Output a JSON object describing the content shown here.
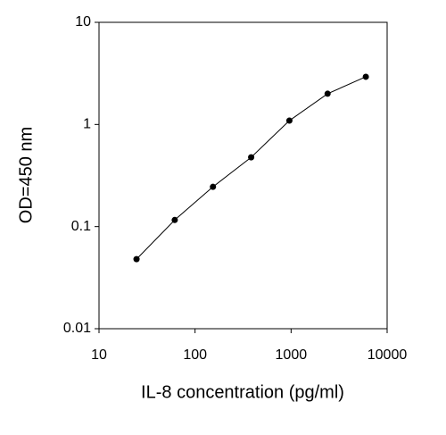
{
  "chart_data": {
    "type": "line",
    "x_label": "IL-8 concentration (pg/ml)",
    "y_label": "OD=450 nm",
    "x": [
      24.58,
      61.44,
      153.6,
      384,
      960,
      2400,
      6000
    ],
    "series": [
      {
        "color": "#000000",
        "values": [
          0.048,
          0.116,
          0.245,
          0.477,
          1.09,
          2.0,
          2.93
        ]
      }
    ],
    "xlim": [
      10,
      10000
    ],
    "xticks": [
      10,
      100,
      1000,
      10000
    ],
    "x_log": true,
    "ylim": [
      0.01,
      10
    ],
    "yticks": [
      0.01,
      0.1,
      1,
      10
    ],
    "y_log": true,
    "grid": false
  }
}
